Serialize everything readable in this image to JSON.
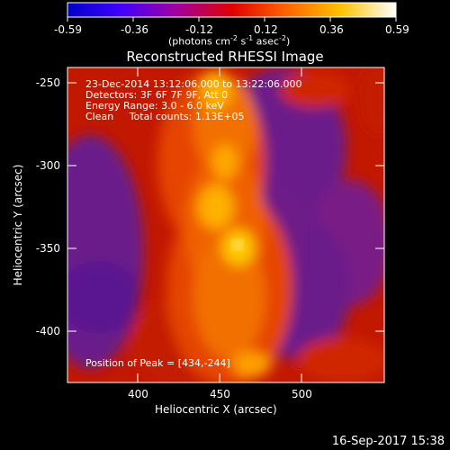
{
  "colorbar": {
    "ticks": [
      "-0.59",
      "-0.36",
      "-0.12",
      "0.12",
      "0.36",
      "0.59"
    ],
    "unit_base": "(photons cm",
    "unit_exp1": "-2",
    "unit_mid": " s",
    "unit_exp2": "-1",
    "unit_mid2": " asec",
    "unit_exp3": "-2",
    "unit_end": ")",
    "min": -0.59,
    "max": 0.59
  },
  "chart_data": {
    "type": "heatmap",
    "title": "Reconstructed RHESSI Image",
    "xlabel": "Heliocentric X (arcsec)",
    "ylabel": "Heliocentric Y (arcsec)",
    "xlim": [
      360,
      550
    ],
    "ylim": [
      -430,
      -240
    ],
    "x_ticks": [
      400,
      450,
      500
    ],
    "y_ticks": [
      -250,
      -300,
      -350,
      -400
    ],
    "annotations": {
      "time": "23-Dec-2014 13:12:06.000 to 13:22:06.000",
      "detectors": "Detectors: 3F 6F 7F 9F, Att 0",
      "energy": "Energy Range: 3.0 - 6.0 keV",
      "clean": "Clean     Total counts: 1.13E+05",
      "peak": "Position of Peak = [434,-244]"
    },
    "peak": [
      434,
      -244
    ]
  },
  "footer": {
    "timestamp": "16-Sep-2017 15:38"
  }
}
